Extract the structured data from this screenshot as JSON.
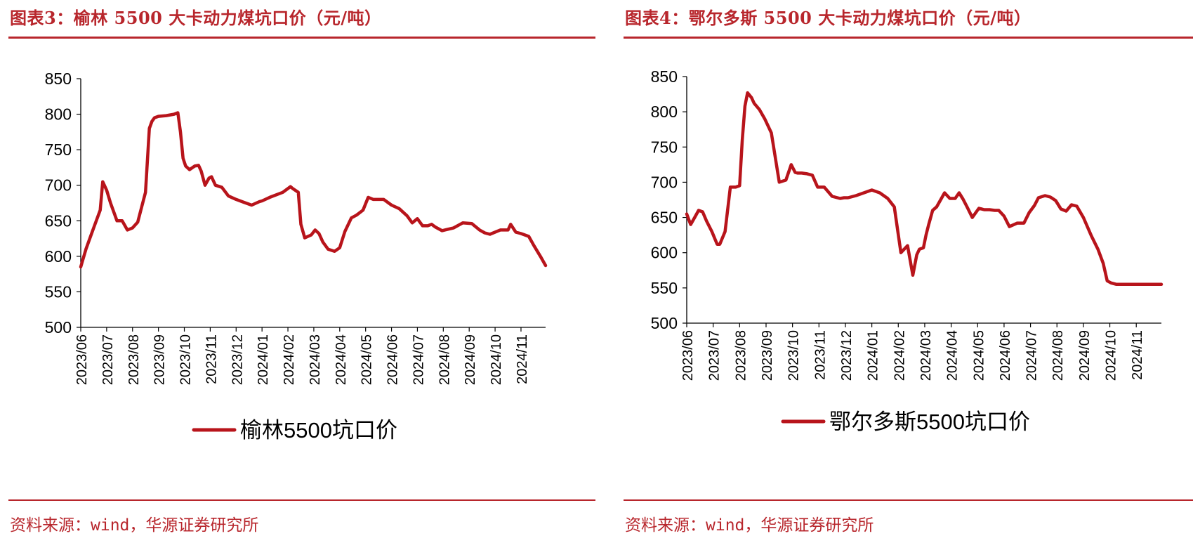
{
  "panels": [
    {
      "title": "图表3：榆林 5500 大卡动力煤坑口价（元/吨）",
      "source": "资料来源：wind，华源证券研究所",
      "chart_data": {
        "type": "line",
        "title": "图表3：榆林 5500 大卡动力煤坑口价（元/吨）",
        "xlabel": "",
        "ylabel": "",
        "ylim": [
          500,
          850
        ],
        "yticks": [
          500,
          550,
          600,
          650,
          700,
          750,
          800,
          850
        ],
        "categories": [
          "2023/06",
          "2023/07",
          "2023/08",
          "2023/09",
          "2023/10",
          "2023/11",
          "2023/12",
          "2024/01",
          "2024/02",
          "2024/03",
          "2024/04",
          "2024/05",
          "2024/06",
          "2024/07",
          "2024/08",
          "2024/09",
          "2024/10",
          "2024/11"
        ],
        "x_max": 17.95,
        "legend": "bottom-center",
        "series": [
          {
            "name": "榆林5500坑口价",
            "color": "#b8141b",
            "x": [
              0,
              0.2,
              0.5,
              0.75,
              0.85,
              1.0,
              1.15,
              1.4,
              1.6,
              1.8,
              2.0,
              2.2,
              2.5,
              2.65,
              2.75,
              2.85,
              3.0,
              3.3,
              3.6,
              3.75,
              3.85,
              3.95,
              4.05,
              4.2,
              4.4,
              4.55,
              4.65,
              4.8,
              4.95,
              5.05,
              5.2,
              5.45,
              5.7,
              6.0,
              6.3,
              6.6,
              6.9,
              7.0,
              7.3,
              7.8,
              8.1,
              8.2,
              8.4,
              8.5,
              8.65,
              8.9,
              9.05,
              9.2,
              9.35,
              9.55,
              9.8,
              10.0,
              10.2,
              10.45,
              10.65,
              10.9,
              11.1,
              11.3,
              11.7,
              12.0,
              12.3,
              12.6,
              12.8,
              13.0,
              13.2,
              13.4,
              13.55,
              13.7,
              13.95,
              14.4,
              14.75,
              15.1,
              15.4,
              15.6,
              15.8,
              16.2,
              16.5,
              16.6,
              16.8,
              17.0,
              17.3,
              17.5,
              17.75,
              17.95
            ],
            "values": [
              585,
              610,
              640,
              665,
              705,
              693,
              675,
              650,
              650,
              637,
              640,
              648,
              690,
              780,
              790,
              795,
              797,
              798,
              800,
              802,
              775,
              738,
              727,
              722,
              727,
              728,
              720,
              700,
              710,
              712,
              700,
              697,
              685,
              680,
              676,
              672,
              677,
              678,
              683,
              690,
              698,
              695,
              690,
              645,
              626,
              630,
              637,
              632,
              620,
              610,
              607,
              612,
              635,
              654,
              658,
              665,
              683,
              680,
              680,
              672,
              667,
              657,
              647,
              653,
              643,
              643,
              645,
              641,
              636,
              640,
              647,
              646,
              637,
              633,
              631,
              637,
              637,
              645,
              634,
              632,
              628,
              615,
              600,
              587
            ]
          }
        ]
      }
    },
    {
      "title": "图表4：鄂尔多斯 5500 大卡动力煤坑口价（元/吨）",
      "source": "资料来源：wind，华源证券研究所",
      "chart_data": {
        "type": "line",
        "title": "图表4：鄂尔多斯 5500 大卡动力煤坑口价（元/吨）",
        "xlabel": "",
        "ylabel": "",
        "ylim": [
          500,
          850
        ],
        "yticks": [
          500,
          550,
          600,
          650,
          700,
          750,
          800,
          850
        ],
        "categories": [
          "2023/06",
          "2023/07",
          "2023/08",
          "2023/09",
          "2023/10",
          "2023/11",
          "2023/12",
          "2024/01",
          "2024/02",
          "2024/03",
          "2024/04",
          "2024/05",
          "2024/06",
          "2024/07",
          "2024/08",
          "2024/09",
          "2024/10",
          "2024/11"
        ],
        "x_max": 17.95,
        "legend": "bottom-center",
        "series": [
          {
            "name": "鄂尔多斯5500坑口价",
            "color": "#b8141b",
            "x": [
              0,
              0.15,
              0.3,
              0.45,
              0.6,
              0.75,
              0.95,
              1.15,
              1.25,
              1.45,
              1.65,
              1.85,
              2.0,
              2.1,
              2.2,
              2.3,
              2.45,
              2.55,
              2.75,
              2.95,
              3.2,
              3.5,
              3.75,
              3.95,
              4.1,
              4.2,
              4.35,
              4.55,
              4.75,
              4.95,
              5.2,
              5.5,
              5.8,
              5.95,
              6.1,
              6.4,
              6.7,
              7.0,
              7.3,
              7.6,
              7.85,
              8.1,
              8.35,
              8.55,
              8.7,
              8.8,
              8.95,
              9.05,
              9.15,
              9.3,
              9.45,
              9.75,
              9.95,
              10.15,
              10.3,
              10.45,
              10.6,
              10.8,
              11.05,
              11.25,
              11.45,
              11.65,
              11.8,
              12.0,
              12.2,
              12.5,
              12.75,
              12.95,
              13.15,
              13.3,
              13.55,
              13.75,
              13.95,
              14.15,
              14.35,
              14.55,
              14.75,
              15.0,
              15.3,
              15.55,
              15.75,
              15.9,
              16.05,
              16.25,
              16.55,
              16.85,
              17.1,
              17.35,
              17.55,
              17.7,
              17.95
            ],
            "values": [
              655,
              640,
              650,
              660,
              658,
              645,
              630,
              612,
              612,
              630,
              693,
              693,
              695,
              760,
              808,
              827,
              820,
              812,
              803,
              790,
              770,
              700,
              703,
              725,
              714,
              713,
              713,
              712,
              710,
              693,
              693,
              680,
              677,
              678,
              678,
              681,
              685,
              689,
              685,
              677,
              665,
              600,
              610,
              568,
              597,
              605,
              607,
              625,
              640,
              660,
              665,
              685,
              677,
              677,
              685,
              676,
              665,
              650,
              663,
              661,
              661,
              660,
              660,
              652,
              637,
              642,
              642,
              657,
              667,
              678,
              681,
              679,
              674,
              662,
              659,
              668,
              666,
              650,
              624,
              605,
              585,
              560,
              557,
              555,
              555,
              555,
              555,
              555,
              555,
              555,
              555
            ]
          }
        ]
      }
    }
  ]
}
